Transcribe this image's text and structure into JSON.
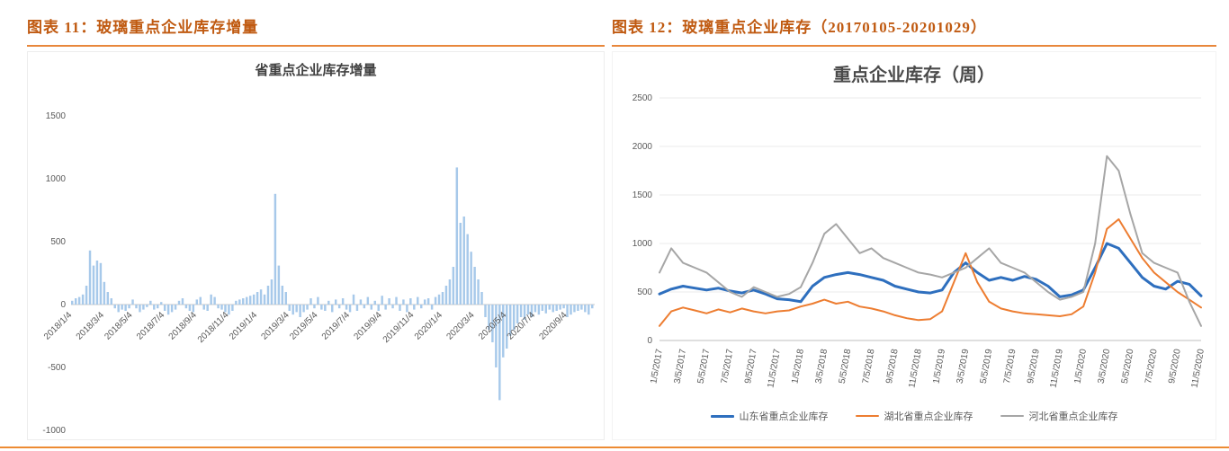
{
  "page": {
    "accent_color": "#C05A11",
    "rule_color": "#ED8B33"
  },
  "captions": {
    "left": "图表 11：玻璃重点企业库存增量",
    "right": "图表 12：玻璃重点企业库存（20170105-20201029）"
  },
  "chart_data": [
    {
      "type": "bar",
      "title": "省重点企业库存增量",
      "xlabel": "",
      "ylabel": "",
      "ylim": [
        -1000,
        1500
      ],
      "yticks": [
        1500,
        1000,
        500,
        0,
        -500,
        -1000
      ],
      "grid": false,
      "bar_color": "#A7C9EA",
      "x_tick_labels": [
        "2018/1/4",
        "2018/3/4",
        "2018/5/4",
        "2018/7/4",
        "2018/9/4",
        "2018/11/4",
        "2019/1/4",
        "2019/3/4",
        "2019/5/4",
        "2019/7/4",
        "2019/9/4",
        "2019/11/4",
        "2020/1/4",
        "2020/3/4",
        "2020/5/4",
        "2020/7/4",
        "2020/9/4"
      ],
      "tick_indices": [
        0,
        9,
        17,
        26,
        35,
        44,
        52,
        61,
        69,
        78,
        87,
        96,
        104,
        113,
        122,
        130,
        139
      ],
      "values": [
        30,
        50,
        60,
        80,
        150,
        430,
        310,
        350,
        330,
        180,
        100,
        50,
        -30,
        -60,
        -40,
        -50,
        -30,
        40,
        -30,
        -60,
        -40,
        -20,
        30,
        -40,
        -30,
        20,
        -50,
        -80,
        -60,
        -40,
        30,
        50,
        -30,
        -50,
        -60,
        40,
        60,
        -40,
        -50,
        80,
        60,
        -30,
        -40,
        -60,
        -80,
        -50,
        30,
        40,
        50,
        60,
        70,
        80,
        100,
        120,
        80,
        150,
        200,
        880,
        310,
        150,
        100,
        -50,
        -80,
        -60,
        -100,
        -60,
        -40,
        50,
        -30,
        60,
        -40,
        -50,
        30,
        -60,
        40,
        -30,
        50,
        -40,
        -60,
        80,
        -50,
        40,
        -30,
        60,
        -40,
        30,
        -50,
        70,
        -40,
        50,
        -30,
        60,
        -50,
        40,
        -60,
        50,
        -40,
        60,
        -30,
        40,
        50,
        -40,
        60,
        80,
        100,
        150,
        200,
        300,
        1090,
        650,
        700,
        560,
        420,
        300,
        200,
        100,
        -100,
        -200,
        -300,
        -500,
        -760,
        -420,
        -350,
        -250,
        -200,
        -150,
        -100,
        -120,
        -80,
        -100,
        -60,
        -80,
        -50,
        -70,
        -40,
        -60,
        -50,
        -40,
        -30,
        -100,
        -80,
        -60,
        -50,
        -40,
        -60,
        -80,
        -30
      ]
    },
    {
      "type": "line",
      "title": "重点企业库存（周）",
      "xlabel": "",
      "ylabel": "",
      "ylim": [
        0,
        2500
      ],
      "yticks": [
        0,
        500,
        1000,
        1500,
        2000,
        2500
      ],
      "grid": true,
      "legend_position": "bottom",
      "x_tick_labels": [
        "1/5/2017",
        "3/5/2017",
        "5/5/2017",
        "7/5/2017",
        "9/5/2017",
        "11/5/2017",
        "1/5/2018",
        "3/5/2018",
        "5/5/2018",
        "7/5/2018",
        "9/5/2018",
        "11/5/2018",
        "1/5/2019",
        "3/5/2019",
        "5/5/2019",
        "7/5/2019",
        "9/5/2019",
        "11/5/2019",
        "1/5/2020",
        "3/5/2020",
        "5/5/2020",
        "7/5/2020",
        "9/5/2020",
        "11/5/2020"
      ],
      "tick_step": 2,
      "series": [
        {
          "name": "山东省重点企业库存",
          "color": "#2E6FBE",
          "width": 3,
          "values": [
            480,
            530,
            560,
            540,
            520,
            540,
            510,
            490,
            520,
            480,
            430,
            420,
            400,
            560,
            650,
            680,
            700,
            680,
            650,
            620,
            560,
            530,
            500,
            490,
            520,
            700,
            800,
            700,
            620,
            650,
            620,
            660,
            630,
            560,
            450,
            470,
            520,
            750,
            1000,
            950,
            800,
            650,
            560,
            530,
            610,
            580,
            460
          ]
        },
        {
          "name": "湖北省重点企业库存",
          "color": "#ED7D31",
          "width": 2,
          "values": [
            150,
            300,
            340,
            310,
            280,
            320,
            290,
            330,
            300,
            280,
            300,
            310,
            350,
            380,
            420,
            380,
            400,
            350,
            330,
            300,
            260,
            230,
            210,
            220,
            300,
            600,
            900,
            600,
            400,
            330,
            300,
            280,
            270,
            260,
            250,
            270,
            350,
            700,
            1150,
            1250,
            1050,
            850,
            700,
            600,
            500,
            420,
            340
          ]
        },
        {
          "name": "河北省重点企业库存",
          "color": "#A6A6A6",
          "width": 2,
          "values": [
            700,
            950,
            800,
            750,
            700,
            600,
            500,
            450,
            550,
            500,
            450,
            480,
            550,
            800,
            1100,
            1200,
            1050,
            900,
            950,
            850,
            800,
            750,
            700,
            680,
            650,
            700,
            750,
            850,
            950,
            800,
            750,
            700,
            600,
            500,
            420,
            450,
            500,
            1000,
            1900,
            1750,
            1300,
            900,
            800,
            750,
            700,
            400,
            150
          ]
        }
      ]
    }
  ]
}
